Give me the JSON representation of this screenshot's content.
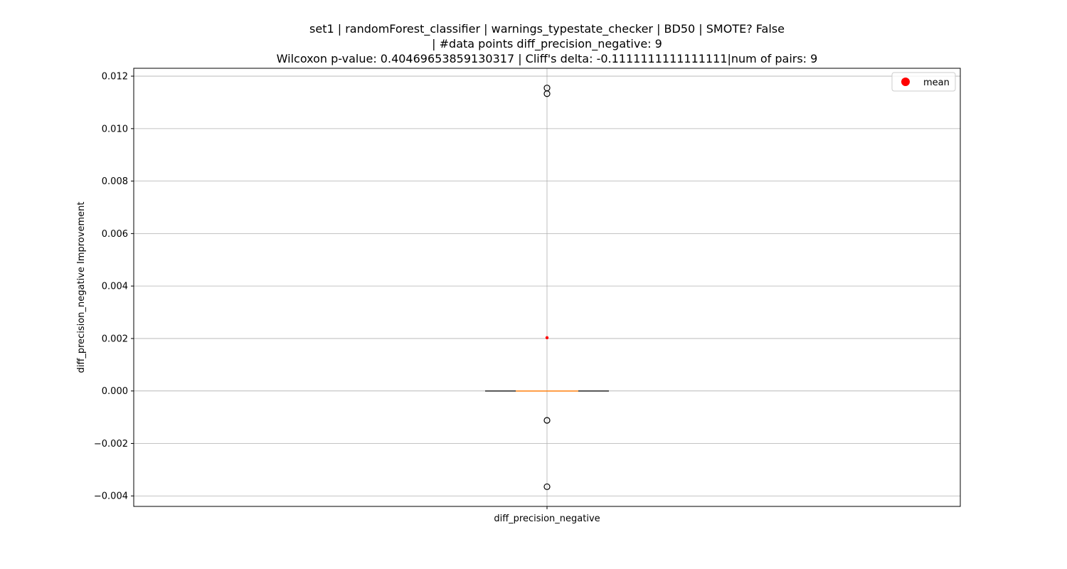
{
  "chart_data": {
    "type": "box",
    "title_lines": [
      "set1 | randomForest_classifier | warnings_typestate_checker | BD50 | SMOTE? False",
      "| #data points diff_precision_negative: 9",
      "Wilcoxon p-value: 0.40469653859130317 | Cliff's delta: -0.1111111111111111|num of pairs: 9"
    ],
    "xlabel": "",
    "ylabel": "diff_precision_negative Improvement",
    "categories": [
      "diff_precision_negative"
    ],
    "ylim": [
      -0.0044,
      0.0123
    ],
    "yticks": [
      -0.004,
      -0.002,
      0.0,
      0.002,
      0.004,
      0.006,
      0.008,
      0.01,
      0.012
    ],
    "ytick_labels": [
      "−0.004",
      "−0.002",
      "0.000",
      "0.002",
      "0.004",
      "0.006",
      "0.008",
      "0.010",
      "0.012"
    ],
    "grid": true,
    "box": {
      "q1": 0.0,
      "median": 0.0,
      "q3": 0.0,
      "whisker_low": 0.0,
      "whisker_high": 0.0
    },
    "outliers": [
      0.01155,
      0.01133,
      -0.00112,
      -0.00365
    ],
    "mean": 0.00203,
    "legend": {
      "position": "top-right",
      "entries": [
        {
          "label": "mean",
          "color": "#ff0000"
        }
      ]
    },
    "colors": {
      "median": "#ff7f0e",
      "mean": "#ff0000",
      "grid": "#b0b0b0",
      "outlier_edge": "#000000"
    }
  }
}
